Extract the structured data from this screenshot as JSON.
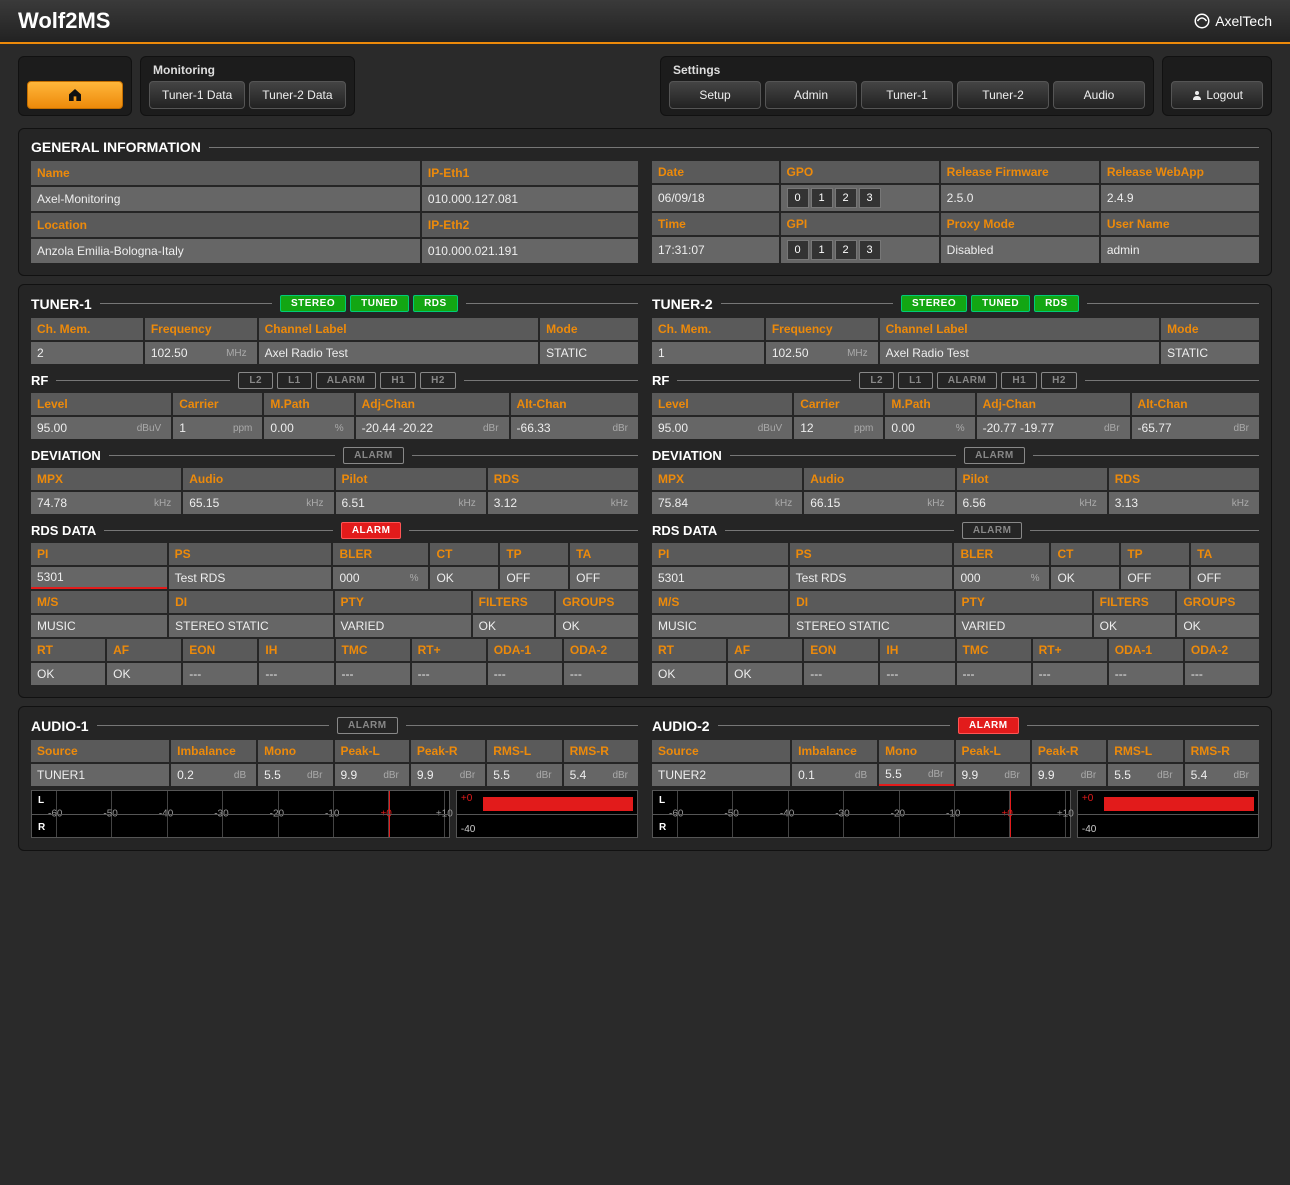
{
  "app": {
    "title": "Wolf2MS",
    "brand": "AxelTech"
  },
  "nav": {
    "monitoring_label": "Monitoring",
    "settings_label": "Settings",
    "tuner1": "Tuner-1 Data",
    "tuner2": "Tuner-2 Data",
    "setup": "Setup",
    "admin": "Admin",
    "t1": "Tuner-1",
    "t2": "Tuner-2",
    "audio": "Audio",
    "logout": "Logout"
  },
  "gen": {
    "title": "GENERAL INFORMATION",
    "name_l": "Name",
    "name_v": "Axel-Monitoring",
    "ip1_l": "IP-Eth1",
    "ip1_v": "010.000.127.081",
    "date_l": "Date",
    "date_v": "06/09/18",
    "gpo_l": "GPO",
    "rel_fw_l": "Release Firmware",
    "rel_fw_v": "2.5.0",
    "rel_wa_l": "Release WebApp",
    "rel_wa_v": "2.4.9",
    "loc_l": "Location",
    "loc_v": "Anzola Emilia-Bologna-Italy",
    "ip2_l": "IP-Eth2",
    "ip2_v": "010.000.021.191",
    "time_l": "Time",
    "time_v": "17:31:07",
    "gpi_l": "GPI",
    "proxy_l": "Proxy Mode",
    "proxy_v": "Disabled",
    "user_l": "User Name",
    "user_v": "admin",
    "gp": [
      "0",
      "1",
      "2",
      "3"
    ]
  },
  "tuner_labels": {
    "stereo": "STEREO",
    "tuned": "TUNED",
    "rds": "RDS",
    "chmem": "Ch. Mem.",
    "freq": "Frequency",
    "chlabel": "Channel Label",
    "mode": "Mode",
    "rf": "RF",
    "level": "Level",
    "carrier": "Carrier",
    "mpath": "M.Path",
    "adj": "Adj-Chan",
    "alt": "Alt-Chan",
    "dev": "DEVIATION",
    "mpx": "MPX",
    "audio": "Audio",
    "pilot": "Pilot",
    "rds2": "RDS",
    "rdsdata": "RDS DATA",
    "pi": "PI",
    "ps": "PS",
    "bler": "BLER",
    "ct": "CT",
    "tp": "TP",
    "ta": "TA",
    "ms": "M/S",
    "di": "DI",
    "pty": "PTY",
    "filters": "FILTERS",
    "groups": "GROUPS",
    "rt": "RT",
    "af": "AF",
    "eon": "EON",
    "ih": "IH",
    "tmc": "TMC",
    "rtp": "RT+",
    "oda1": "ODA-1",
    "oda2": "ODA-2",
    "alarm": "ALARM",
    "l2": "L2",
    "l1": "L1",
    "h1": "H1",
    "h2": "H2",
    "mhz": "MHz",
    "dbuv": "dBuV",
    "ppm": "ppm",
    "pct": "%",
    "dbr": "dBr",
    "khz": "kHz",
    "db": "dB"
  },
  "t1": {
    "title": "TUNER-1",
    "chmem": "2",
    "freq": "102.50",
    "chlabel": "Axel Radio Test",
    "mode": "STATIC",
    "level": "95.00",
    "carrier": "1",
    "mpath": "0.00",
    "adj": "-20.44 -20.22",
    "alt": "-66.33",
    "mpx": "74.78",
    "audio": "65.15",
    "pilot": "6.51",
    "rds": "3.12",
    "pi": "5301",
    "ps": "Test RDS",
    "bler": "000",
    "ct": "OK",
    "tp": "OFF",
    "ta": "OFF",
    "ms": "MUSIC",
    "di": "STEREO STATIC",
    "pty": "VARIED",
    "filters": "OK",
    "groups": "OK",
    "rt": "OK",
    "af": "OK",
    "eon": "---",
    "ih": "---",
    "tmc": "---",
    "rtp": "---",
    "oda1": "---",
    "oda2": "---",
    "rds_alarm": true
  },
  "t2": {
    "title": "TUNER-2",
    "chmem": "1",
    "freq": "102.50",
    "chlabel": "Axel Radio Test",
    "mode": "STATIC",
    "level": "95.00",
    "carrier": "12",
    "mpath": "0.00",
    "adj": "-20.77 -19.77",
    "alt": "-65.77",
    "mpx": "75.84",
    "audio": "66.15",
    "pilot": "6.56",
    "rds": "3.13",
    "pi": "5301",
    "ps": "Test RDS",
    "bler": "000",
    "ct": "OK",
    "tp": "OFF",
    "ta": "OFF",
    "ms": "MUSIC",
    "di": "STEREO STATIC",
    "pty": "VARIED",
    "filters": "OK",
    "groups": "OK",
    "rt": "OK",
    "af": "OK",
    "eon": "---",
    "ih": "---",
    "tmc": "---",
    "rtp": "---",
    "oda1": "---",
    "oda2": "---",
    "rds_alarm": false
  },
  "audio_labels": {
    "source": "Source",
    "imb": "Imbalance",
    "mono": "Mono",
    "peakl": "Peak-L",
    "peakr": "Peak-R",
    "rmsl": "RMS-L",
    "rmsr": "RMS-R",
    "L": "L",
    "R": "R",
    "zero": "+0",
    "m40": "-40"
  },
  "a1": {
    "title": "AUDIO-1",
    "alarm": false,
    "source": "TUNER1",
    "imb": "0.2",
    "mono": "5.5",
    "peakl": "9.9",
    "peakr": "9.9",
    "rmsl": "5.5",
    "rmsr": "5.4"
  },
  "a2": {
    "title": "AUDIO-2",
    "alarm": true,
    "source": "TUNER2",
    "imb": "0.1",
    "mono": "5.5",
    "peakl": "9.9",
    "peakr": "9.9",
    "rmsl": "5.5",
    "rmsr": "5.4",
    "mono_alarm": true
  },
  "meter_ticks": [
    "-60",
    "-50",
    "-40",
    "-30",
    "-20",
    "-10",
    "+0",
    "+10"
  ],
  "colors": {
    "accent": "#ed8a0a",
    "green": "#13a613",
    "red": "#e21b1b",
    "bg": "#2a2a2a"
  }
}
